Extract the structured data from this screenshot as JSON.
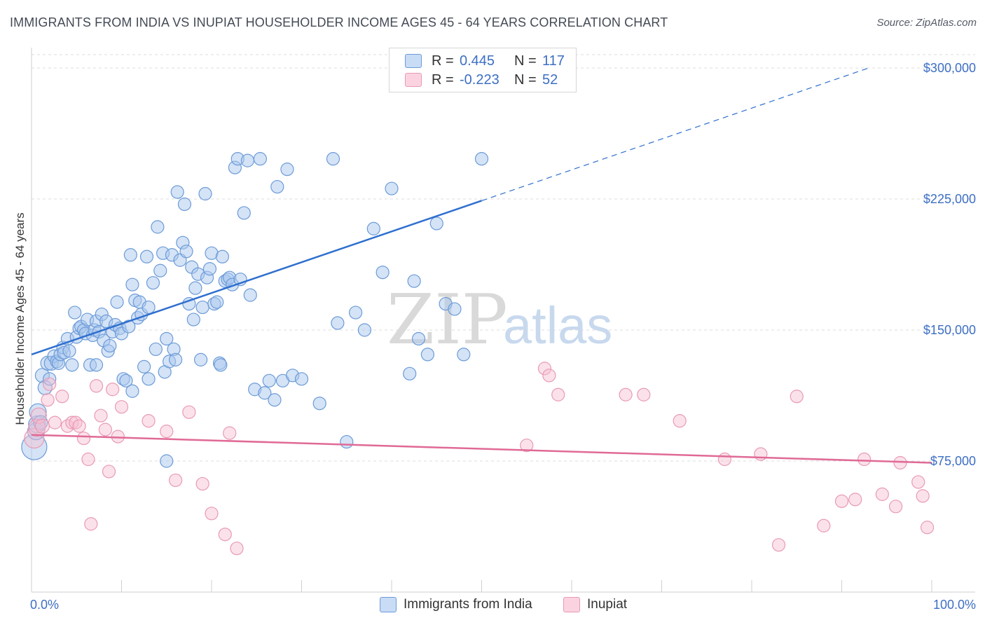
{
  "title": "IMMIGRANTS FROM INDIA VS INUPIAT HOUSEHOLDER INCOME AGES 45 - 64 YEARS CORRELATION CHART",
  "source": "Source: ZipAtlas.com",
  "watermark": {
    "zip": "ZIP",
    "atlas": "atlas"
  },
  "legend": {
    "rows": [
      {
        "r_label": "R =",
        "r_value": "0.445",
        "n_label": "N =",
        "n_value": "117"
      },
      {
        "r_label": "R =",
        "r_value": "-0.223",
        "n_label": "N =",
        "n_value": "52"
      }
    ]
  },
  "bottom_legend": {
    "india": "Immigrants from India",
    "inupiat": "Inupiat"
  },
  "colors": {
    "india_fill": "#a9c7ee",
    "india_stroke": "#6c9bd8",
    "india_line": "#2e6fcf",
    "inupiat_fill": "#f6bfd0",
    "inupiat_stroke": "#e99ab4",
    "inupiat_line": "#e06a96",
    "tick_text": "#3d6fc4",
    "grid": "#dcdcdc"
  },
  "chart_data": {
    "type": "scatter",
    "title": "IMMIGRANTS FROM INDIA VS INUPIAT HOUSEHOLDER INCOME AGES 45 - 64 YEARS CORRELATION CHART",
    "xlabel": "",
    "ylabel": "Householder Income Ages 45 - 64 years",
    "xlim": [
      0,
      100
    ],
    "ylim": [
      0,
      310000
    ],
    "x_ticks": [
      "0.0%",
      "100.0%"
    ],
    "y_ticks": [
      {
        "value": 75000,
        "label": "$75,000"
      },
      {
        "value": 150000,
        "label": "$150,000"
      },
      {
        "value": 225000,
        "label": "$225,000"
      },
      {
        "value": 300000,
        "label": "$300,000"
      }
    ],
    "grid": true,
    "legend_position": "top-center",
    "series": [
      {
        "name": "Immigrants from India",
        "r": 0.445,
        "n": 117,
        "trend": {
          "x": [
            0,
            50
          ],
          "y": [
            136000,
            224000
          ],
          "dashed_to": {
            "x": 93,
            "y": 300000
          }
        },
        "points": [
          [
            0.3,
            83000,
            18
          ],
          [
            0.5,
            92000,
            12
          ],
          [
            0.6,
            96000,
            12
          ],
          [
            0.7,
            103000,
            12
          ],
          [
            1.0,
            97000,
            10
          ],
          [
            1.2,
            124000,
            10
          ],
          [
            1.5,
            117000,
            10
          ],
          [
            1.8,
            131000,
            10
          ],
          [
            2.0,
            122000,
            9
          ],
          [
            2.2,
            131000,
            10
          ],
          [
            2.5,
            135000,
            9
          ],
          [
            2.8,
            132000,
            9
          ],
          [
            3.0,
            131000,
            9
          ],
          [
            3.2,
            136000,
            9
          ],
          [
            3.5,
            140000,
            9
          ],
          [
            3.6,
            137000,
            9
          ],
          [
            4.0,
            145000,
            9
          ],
          [
            4.2,
            138000,
            9
          ],
          [
            4.5,
            130000,
            9
          ],
          [
            4.8,
            160000,
            9
          ],
          [
            5.0,
            146000,
            9
          ],
          [
            5.3,
            151000,
            9
          ],
          [
            5.5,
            152000,
            9
          ],
          [
            5.8,
            150000,
            9
          ],
          [
            6.0,
            148000,
            9
          ],
          [
            6.2,
            156000,
            9
          ],
          [
            6.5,
            130000,
            9
          ],
          [
            6.8,
            147000,
            9
          ],
          [
            7.0,
            150000,
            9
          ],
          [
            7.2,
            155000,
            9
          ],
          [
            7.5,
            149000,
            9
          ],
          [
            7.8,
            159000,
            9
          ],
          [
            8.0,
            144000,
            9
          ],
          [
            8.3,
            155000,
            9
          ],
          [
            8.5,
            138000,
            9
          ],
          [
            8.7,
            141000,
            9
          ],
          [
            9.0,
            149000,
            9
          ],
          [
            9.3,
            153000,
            9
          ],
          [
            9.5,
            166000,
            9
          ],
          [
            9.8,
            151000,
            9
          ],
          [
            10.0,
            148000,
            9
          ],
          [
            10.2,
            122000,
            9
          ],
          [
            10.5,
            121000,
            9
          ],
          [
            10.8,
            152000,
            9
          ],
          [
            11.0,
            193000,
            9
          ],
          [
            11.2,
            115000,
            9
          ],
          [
            11.5,
            167000,
            9
          ],
          [
            11.8,
            157000,
            9
          ],
          [
            12.0,
            166000,
            9
          ],
          [
            12.2,
            159000,
            9
          ],
          [
            12.5,
            129000,
            9
          ],
          [
            12.8,
            192000,
            9
          ],
          [
            13.0,
            163000,
            9
          ],
          [
            13.5,
            177000,
            9
          ],
          [
            13.8,
            139000,
            9
          ],
          [
            14.0,
            209000,
            9
          ],
          [
            14.3,
            184000,
            9
          ],
          [
            14.6,
            194000,
            9
          ],
          [
            14.8,
            126000,
            9
          ],
          [
            15.0,
            145000,
            9
          ],
          [
            15.3,
            132000,
            9
          ],
          [
            15.6,
            193000,
            9
          ],
          [
            15.8,
            139000,
            9
          ],
          [
            16.0,
            133000,
            9
          ],
          [
            16.2,
            229000,
            9
          ],
          [
            16.5,
            190000,
            9
          ],
          [
            16.8,
            200000,
            9
          ],
          [
            17.0,
            222000,
            9
          ],
          [
            17.2,
            195000,
            9
          ],
          [
            17.5,
            165000,
            9
          ],
          [
            17.8,
            186000,
            9
          ],
          [
            18.0,
            156000,
            9
          ],
          [
            18.2,
            174000,
            9
          ],
          [
            18.5,
            182000,
            9
          ],
          [
            18.8,
            133000,
            9
          ],
          [
            19.0,
            163000,
            9
          ],
          [
            19.3,
            228000,
            9
          ],
          [
            19.5,
            180000,
            9
          ],
          [
            19.8,
            185000,
            9
          ],
          [
            20.0,
            194000,
            9
          ],
          [
            20.3,
            165000,
            9
          ],
          [
            20.6,
            166000,
            9
          ],
          [
            20.9,
            131000,
            9
          ],
          [
            21.2,
            192000,
            9
          ],
          [
            21.5,
            178000,
            9
          ],
          [
            21.8,
            179000,
            9
          ],
          [
            22.0,
            180000,
            9
          ],
          [
            22.3,
            176000,
            9
          ],
          [
            22.6,
            243000,
            9
          ],
          [
            22.9,
            248000,
            9
          ],
          [
            23.2,
            179000,
            9
          ],
          [
            23.6,
            217000,
            9
          ],
          [
            24.0,
            247000,
            9
          ],
          [
            24.3,
            170000,
            9
          ],
          [
            24.8,
            116000,
            9
          ],
          [
            25.4,
            248000,
            9
          ],
          [
            25.9,
            114000,
            9
          ],
          [
            26.4,
            121000,
            9
          ],
          [
            27.0,
            110000,
            9
          ],
          [
            27.3,
            232000,
            9
          ],
          [
            27.9,
            121000,
            9
          ],
          [
            28.4,
            242000,
            9
          ],
          [
            29.0,
            124000,
            9
          ],
          [
            32.0,
            108000,
            9
          ],
          [
            33.5,
            248000,
            9
          ],
          [
            34.0,
            154000,
            9
          ],
          [
            35.0,
            86000,
            9
          ],
          [
            36.0,
            160000,
            9
          ],
          [
            37.0,
            150000,
            9
          ],
          [
            38.0,
            208000,
            9
          ],
          [
            39.0,
            183000,
            9
          ],
          [
            40.0,
            231000,
            9
          ],
          [
            42.0,
            125000,
            9
          ],
          [
            43.0,
            145000,
            9
          ],
          [
            44.0,
            136000,
            9
          ],
          [
            45.0,
            211000,
            9
          ],
          [
            46.0,
            165000,
            9
          ],
          [
            47.0,
            162000,
            9
          ],
          [
            48.0,
            136000,
            9
          ],
          [
            50.0,
            248000,
            9
          ],
          [
            15.0,
            75000,
            9
          ],
          [
            30.0,
            122000,
            9
          ],
          [
            42.5,
            178000,
            9
          ],
          [
            13.0,
            122000,
            9
          ],
          [
            7.2,
            130000,
            9
          ],
          [
            11.2,
            176000,
            9
          ],
          [
            21.0,
            130000,
            9
          ]
        ]
      },
      {
        "name": "Inupiat",
        "r": -0.223,
        "n": 52,
        "trend": {
          "x": [
            0,
            100
          ],
          "y": [
            90000,
            74000
          ]
        },
        "points": [
          [
            0.3,
            88000,
            14
          ],
          [
            0.6,
            94000,
            12
          ],
          [
            0.8,
            101000,
            11
          ],
          [
            1.2,
            95000,
            10
          ],
          [
            1.8,
            110000,
            9
          ],
          [
            2.0,
            119000,
            9
          ],
          [
            2.6,
            97000,
            9
          ],
          [
            3.4,
            112000,
            9
          ],
          [
            4.0,
            95000,
            9
          ],
          [
            4.5,
            97000,
            9
          ],
          [
            4.9,
            97000,
            9
          ],
          [
            5.3,
            95000,
            9
          ],
          [
            5.8,
            88000,
            9
          ],
          [
            6.3,
            76000,
            9
          ],
          [
            6.6,
            39000,
            9
          ],
          [
            7.2,
            118000,
            9
          ],
          [
            7.7,
            101000,
            9
          ],
          [
            8.2,
            93000,
            9
          ],
          [
            8.6,
            69000,
            9
          ],
          [
            9.0,
            116000,
            9
          ],
          [
            9.6,
            89000,
            9
          ],
          [
            10.0,
            106000,
            9
          ],
          [
            13.0,
            98000,
            9
          ],
          [
            15.0,
            92000,
            9
          ],
          [
            16.0,
            64000,
            9
          ],
          [
            17.5,
            103000,
            9
          ],
          [
            19.0,
            62000,
            9
          ],
          [
            20.0,
            45000,
            9
          ],
          [
            21.5,
            33000,
            9
          ],
          [
            22.0,
            91000,
            9
          ],
          [
            22.8,
            25000,
            9
          ],
          [
            55.0,
            84000,
            9
          ],
          [
            57.0,
            128000,
            9
          ],
          [
            57.5,
            124000,
            9
          ],
          [
            58.5,
            113000,
            9
          ],
          [
            66.0,
            113000,
            9
          ],
          [
            68.0,
            113000,
            9
          ],
          [
            72.0,
            98000,
            9
          ],
          [
            77.0,
            76000,
            9
          ],
          [
            81.0,
            79000,
            9
          ],
          [
            83.0,
            27000,
            9
          ],
          [
            85.0,
            112000,
            9
          ],
          [
            88.0,
            38000,
            9
          ],
          [
            90.0,
            52000,
            9
          ],
          [
            91.5,
            53000,
            9
          ],
          [
            92.5,
            76000,
            9
          ],
          [
            94.5,
            56000,
            9
          ],
          [
            96.0,
            49000,
            9
          ],
          [
            96.5,
            74000,
            9
          ],
          [
            98.5,
            63000,
            9
          ],
          [
            99.0,
            55000,
            9
          ],
          [
            99.5,
            37000,
            9
          ]
        ]
      }
    ]
  }
}
